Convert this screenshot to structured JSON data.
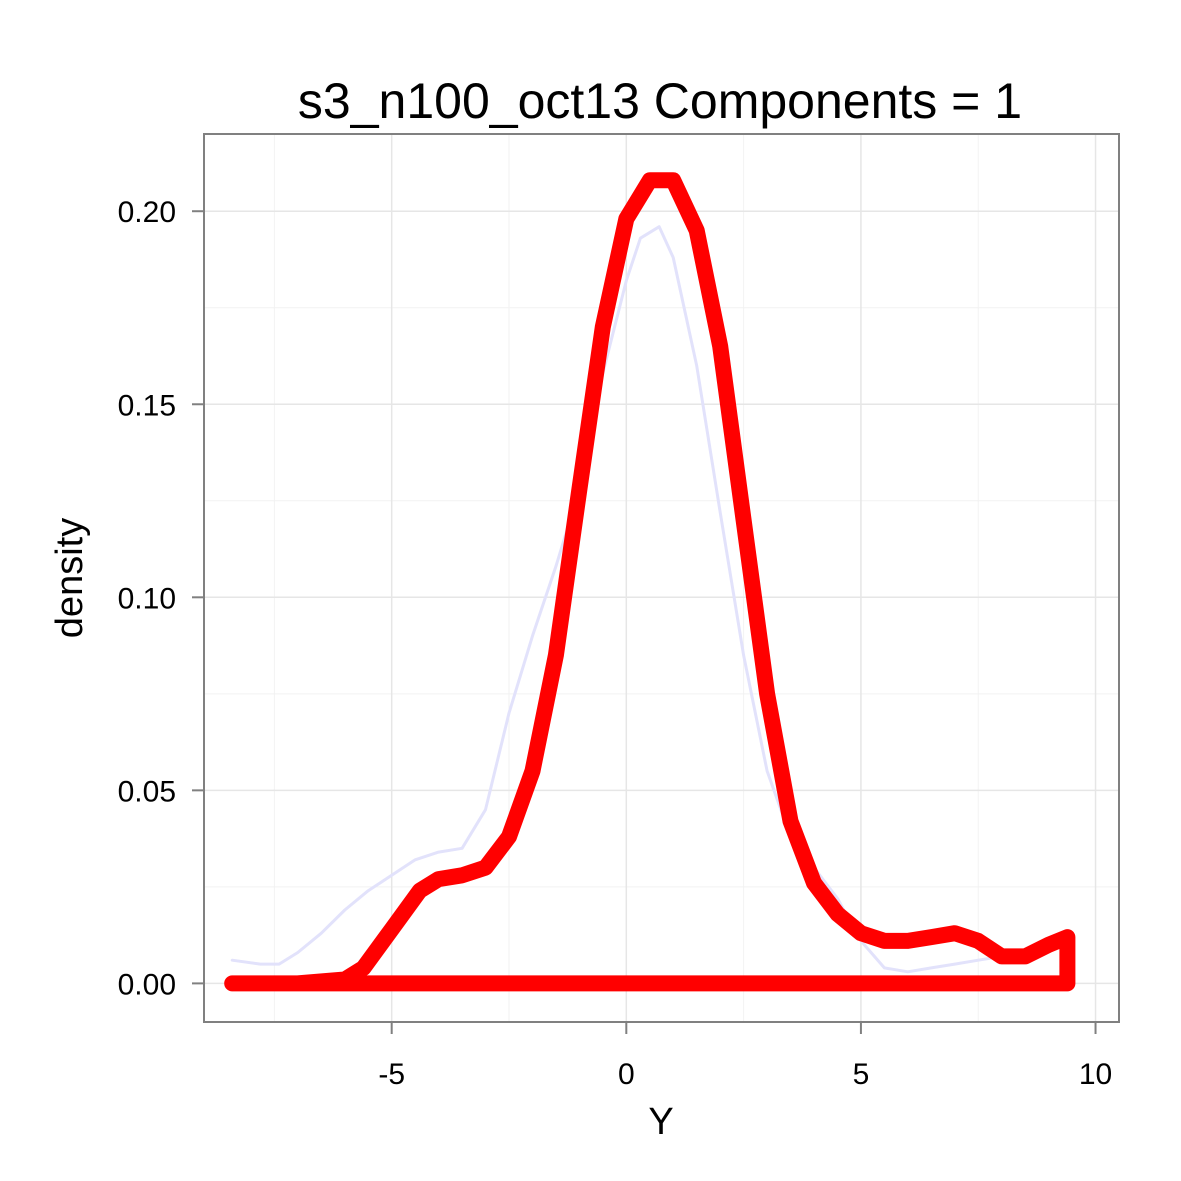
{
  "chart_data": {
    "type": "line",
    "title": "s3_n100_oct13  Components =  1",
    "xlabel": "Y",
    "ylabel": "density",
    "xlim": [
      -9,
      10.5
    ],
    "ylim": [
      -0.01,
      0.22
    ],
    "x_ticks": [
      -5,
      0,
      5,
      10
    ],
    "x_tick_labels": [
      "-5",
      "0",
      "5",
      "10"
    ],
    "y_ticks": [
      0,
      0.05,
      0.1,
      0.15,
      0.2
    ],
    "y_tick_labels": [
      "0.00",
      "0.05",
      "0.10",
      "0.15",
      "0.20"
    ],
    "grid": true,
    "legend": "none",
    "colors": {
      "background": "#ffffff",
      "panel_border": "#808080",
      "grid_major": "#e6e6e6",
      "grid_minor": "#f2f2f2",
      "fitted": "#ff0000",
      "empirical": "#e2e2fb"
    },
    "series": [
      {
        "role": "fitted",
        "x": [
          -8.4,
          -7.0,
          -6.0,
          -5.6,
          -5.0,
          -4.4,
          -4.0,
          -3.5,
          -3.0,
          -2.5,
          -2.0,
          -1.5,
          -1.0,
          -0.5,
          0.0,
          0.5,
          1.0,
          1.5,
          2.0,
          2.5,
          3.0,
          3.5,
          4.0,
          4.5,
          5.0,
          5.5,
          6.0,
          6.5,
          7.0,
          7.5,
          8.0,
          8.5,
          9.0,
          9.4,
          9.4,
          -8.4
        ],
        "y": [
          0.0,
          0.0,
          0.001,
          0.004,
          0.014,
          0.024,
          0.027,
          0.028,
          0.03,
          0.038,
          0.055,
          0.085,
          0.128,
          0.17,
          0.198,
          0.208,
          0.208,
          0.195,
          0.165,
          0.12,
          0.075,
          0.042,
          0.026,
          0.018,
          0.013,
          0.011,
          0.011,
          0.012,
          0.013,
          0.011,
          0.007,
          0.007,
          0.01,
          0.012,
          0.0,
          0.0
        ]
      },
      {
        "role": "empirical",
        "x": [
          -8.4,
          -7.8,
          -7.4,
          -7.0,
          -6.5,
          -6.0,
          -5.5,
          -5.0,
          -4.5,
          -4.0,
          -3.5,
          -3.0,
          -2.5,
          -2.0,
          -1.5,
          -1.0,
          -0.5,
          0.0,
          0.3,
          0.7,
          1.0,
          1.5,
          2.0,
          2.5,
          3.0,
          3.5,
          4.0,
          4.5,
          5.0,
          5.5,
          6.0,
          6.5,
          7.0,
          7.5,
          8.0
        ],
        "y": [
          0.006,
          0.005,
          0.005,
          0.008,
          0.013,
          0.019,
          0.024,
          0.028,
          0.032,
          0.034,
          0.035,
          0.045,
          0.07,
          0.09,
          0.108,
          0.128,
          0.158,
          0.182,
          0.193,
          0.196,
          0.188,
          0.16,
          0.122,
          0.085,
          0.055,
          0.038,
          0.03,
          0.022,
          0.011,
          0.004,
          0.003,
          0.004,
          0.005,
          0.006,
          0.007
        ]
      }
    ]
  }
}
